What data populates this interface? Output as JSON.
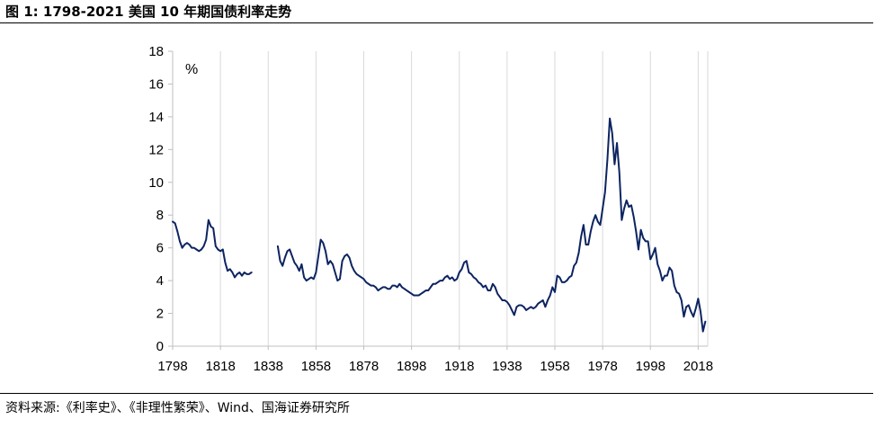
{
  "figure": {
    "title": "图 1:  1798-2021  美国 10 年期国债利率走势",
    "source": "资料来源:《利率史》、《非理性繁荣》、Wind、国海证券研究所"
  },
  "colors": {
    "line": "#0d2461",
    "grid": "#d9d9d9",
    "axis": "#bfbfbf"
  },
  "chart_data": {
    "type": "line",
    "title": "",
    "xlabel": "",
    "ylabel": "",
    "unit_label": "%",
    "xlim": [
      1798,
      2022
    ],
    "ylim": [
      0,
      18
    ],
    "y_ticks": [
      "0",
      "2",
      "4",
      "6",
      "8",
      "10",
      "12",
      "14",
      "16",
      "18"
    ],
    "x_ticks": [
      "1798",
      "1818",
      "1838",
      "1858",
      "1878",
      "1898",
      "1918",
      "1938",
      "1958",
      "1978",
      "1998",
      "2018"
    ],
    "grid": "vertical",
    "series": [
      {
        "segments": [
          {
            "x": [
              1798,
              1799,
              1800,
              1801,
              1802,
              1803,
              1804,
              1805,
              1806,
              1807,
              1808,
              1809,
              1810,
              1811,
              1812,
              1813,
              1814,
              1815,
              1816,
              1817,
              1818,
              1819,
              1820,
              1821,
              1822,
              1823,
              1824,
              1825,
              1826,
              1827,
              1828,
              1829,
              1830,
              1831
            ],
            "y": [
              7.6,
              7.5,
              7.0,
              6.4,
              6.0,
              6.2,
              6.3,
              6.2,
              6.0,
              6.0,
              5.9,
              5.8,
              5.9,
              6.1,
              6.5,
              7.7,
              7.3,
              7.2,
              6.1,
              5.9,
              5.8,
              5.9,
              5.1,
              4.6,
              4.7,
              4.5,
              4.2,
              4.4,
              4.5,
              4.3,
              4.5,
              4.4,
              4.4,
              4.5
            ]
          },
          {
            "x": [
              1842,
              1843,
              1844,
              1845,
              1846,
              1847,
              1848,
              1849,
              1850,
              1851,
              1852,
              1853,
              1854,
              1855,
              1856,
              1857,
              1858,
              1859,
              1860,
              1861,
              1862,
              1863,
              1864,
              1865,
              1866,
              1867,
              1868,
              1869,
              1870,
              1871,
              1872,
              1873,
              1874,
              1875,
              1876,
              1877,
              1878,
              1879,
              1880,
              1881,
              1882,
              1883,
              1884,
              1885,
              1886,
              1887,
              1888,
              1889,
              1890,
              1891,
              1892,
              1893,
              1894,
              1895,
              1896,
              1897,
              1898,
              1899,
              1900,
              1901,
              1902,
              1903,
              1904,
              1905,
              1906,
              1907,
              1908,
              1909,
              1910,
              1911,
              1912,
              1913,
              1914,
              1915,
              1916,
              1917,
              1918,
              1919,
              1920,
              1921,
              1922,
              1923,
              1924,
              1925,
              1926,
              1927,
              1928,
              1929,
              1930,
              1931,
              1932,
              1933,
              1934,
              1935,
              1936,
              1937,
              1938,
              1939,
              1940,
              1941,
              1942,
              1943,
              1944,
              1945,
              1946,
              1947,
              1948,
              1949,
              1950,
              1951,
              1952,
              1953,
              1954,
              1955,
              1956,
              1957,
              1958,
              1959,
              1960,
              1961,
              1962,
              1963,
              1964,
              1965,
              1966,
              1967,
              1968,
              1969,
              1970,
              1971,
              1972,
              1973,
              1974,
              1975,
              1976,
              1977,
              1978,
              1979,
              1980,
              1981,
              1982,
              1983,
              1984,
              1985,
              1986,
              1987,
              1988,
              1989,
              1990,
              1991,
              1992,
              1993,
              1994,
              1995,
              1996,
              1997,
              1998,
              1999,
              2000,
              2001,
              2002,
              2003,
              2004,
              2005,
              2006,
              2007,
              2008,
              2009,
              2010,
              2011,
              2012,
              2013,
              2014,
              2015,
              2016,
              2017,
              2018,
              2019,
              2020,
              2021
            ],
            "y": [
              6.1,
              5.2,
              4.9,
              5.4,
              5.8,
              5.9,
              5.5,
              5.1,
              4.9,
              4.6,
              5.0,
              4.2,
              4.0,
              4.1,
              4.2,
              4.1,
              4.5,
              5.5,
              6.5,
              6.3,
              5.8,
              5.0,
              5.2,
              5.0,
              4.5,
              4.0,
              4.1,
              5.2,
              5.5,
              5.6,
              5.4,
              4.9,
              4.6,
              4.4,
              4.3,
              4.2,
              4.1,
              3.9,
              3.8,
              3.7,
              3.7,
              3.6,
              3.4,
              3.5,
              3.6,
              3.6,
              3.5,
              3.5,
              3.7,
              3.7,
              3.6,
              3.8,
              3.6,
              3.5,
              3.4,
              3.3,
              3.2,
              3.1,
              3.1,
              3.1,
              3.2,
              3.3,
              3.4,
              3.4,
              3.6,
              3.8,
              3.8,
              3.9,
              4.0,
              4.0,
              4.2,
              4.3,
              4.1,
              4.2,
              4.0,
              4.1,
              4.5,
              4.7,
              5.1,
              5.2,
              4.5,
              4.4,
              4.2,
              4.1,
              3.9,
              3.8,
              3.6,
              3.7,
              3.4,
              3.4,
              3.8,
              3.6,
              3.2,
              3.0,
              2.8,
              2.8,
              2.7,
              2.5,
              2.2,
              1.9,
              2.4,
              2.5,
              2.5,
              2.4,
              2.2,
              2.3,
              2.4,
              2.3,
              2.4,
              2.6,
              2.7,
              2.8,
              2.4,
              2.8,
              3.1,
              3.6,
              3.3,
              4.3,
              4.2,
              3.9,
              3.9,
              4.0,
              4.2,
              4.3,
              4.9,
              5.1,
              5.7,
              6.7,
              7.4,
              6.2,
              6.2,
              7.0,
              7.6,
              8.0,
              7.6,
              7.4,
              8.4,
              9.4,
              11.4,
              13.9,
              13.0,
              11.1,
              12.4,
              10.6,
              7.7,
              8.4,
              8.9,
              8.5,
              8.6,
              7.9,
              7.0,
              5.9,
              7.1,
              6.6,
              6.4,
              6.4,
              5.3,
              5.6,
              6.0,
              5.0,
              4.6,
              4.0,
              4.3,
              4.3,
              4.8,
              4.6,
              3.7,
              3.3,
              3.2,
              2.8,
              1.8,
              2.4,
              2.5,
              2.1,
              1.8,
              2.3,
              2.9,
              2.1,
              0.9,
              1.5
            ]
          }
        ]
      }
    ]
  }
}
